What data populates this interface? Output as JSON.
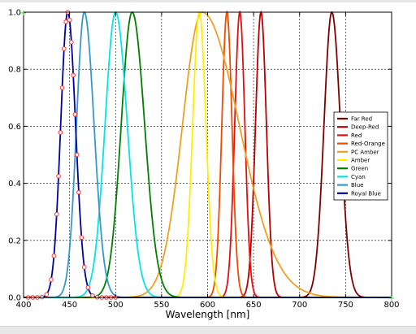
{
  "chart_data": {
    "type": "line",
    "title": "",
    "xlabel": "Wavelength [nm]",
    "ylabel": "",
    "xlim": [
      400,
      800
    ],
    "ylim": [
      0,
      1.0
    ],
    "xticks": [
      "400",
      "450",
      "500",
      "550",
      "600",
      "650",
      "700",
      "750",
      "800"
    ],
    "yticks": [
      "0.0",
      "0.2",
      "0.4",
      "0.6",
      "0.8",
      "1.0"
    ],
    "grid": true,
    "legend_position": "right",
    "series": [
      {
        "name": "Far Red",
        "color": "#800000",
        "peak": 735,
        "fwhm_left": 20,
        "fwhm_right": 22
      },
      {
        "name": "Deep-Red",
        "color": "#b80000",
        "peak": 658,
        "fwhm_left": 14,
        "fwhm_right": 14
      },
      {
        "name": "Red",
        "color": "#e01010",
        "peak": 635,
        "fwhm_left": 13,
        "fwhm_right": 13
      },
      {
        "name": "Red-Orange",
        "color": "#f04a00",
        "peak": 621,
        "fwhm_left": 13,
        "fwhm_right": 13
      },
      {
        "name": "PC Amber",
        "color": "#f0a020",
        "peak": 594,
        "fwhm_left": 50,
        "fwhm_right": 95
      },
      {
        "name": "Amber",
        "color": "#ffee00",
        "peak": 591,
        "fwhm_left": 17,
        "fwhm_right": 17
      },
      {
        "name": "Green",
        "color": "#008000",
        "peak": 518,
        "fwhm_left": 28,
        "fwhm_right": 32
      },
      {
        "name": "Cyan",
        "color": "#00e6e6",
        "peak": 500,
        "fwhm_left": 27,
        "fwhm_right": 30
      },
      {
        "name": "Blue",
        "color": "#3399cc",
        "peak": 466,
        "fwhm_left": 20,
        "fwhm_right": 25
      },
      {
        "name": "Royal Blue",
        "color": "#0000a0",
        "peak": 448,
        "fwhm_left": 18,
        "fwhm_right": 20
      }
    ],
    "markers": {
      "series": "Royal Blue",
      "color": "#ff3030",
      "x": [
        405,
        410,
        415,
        420,
        425,
        430,
        433,
        436,
        438,
        440,
        442,
        444,
        446,
        448,
        450,
        452,
        454,
        456,
        458,
        460,
        463,
        466,
        470,
        475,
        480,
        485,
        490,
        495,
        500
      ]
    }
  }
}
